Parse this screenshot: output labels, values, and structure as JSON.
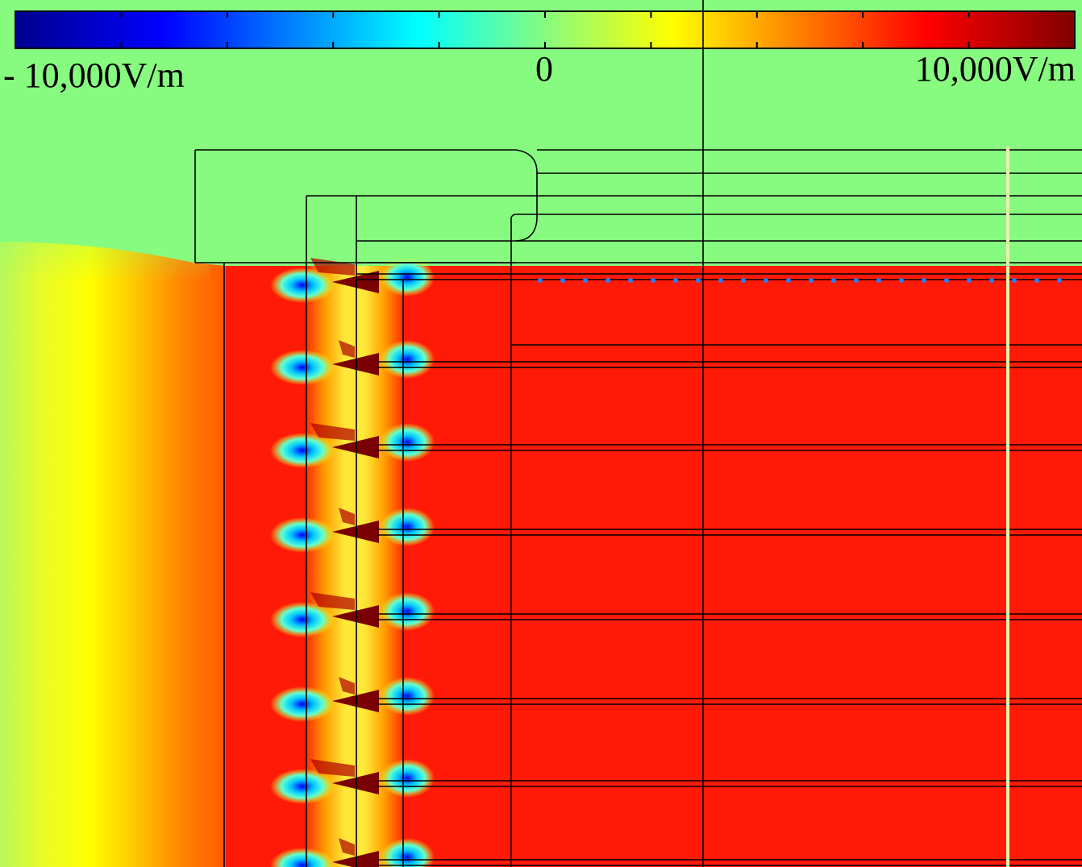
{
  "colorbar": {
    "min_label": "- 10,000V/m",
    "zero_label": "0",
    "max_label": "10,000V/m",
    "min_value": -10000,
    "max_value": 10000,
    "unit": "V/m",
    "colormap": "jet",
    "stops": [
      "#00008f",
      "#0000ff",
      "#00ffff",
      "#87fb7f",
      "#ffff00",
      "#ff0000",
      "#800000"
    ]
  },
  "colors": {
    "background_field": "#87fb7f",
    "high_field": "#ff1a08",
    "outline": "#000000"
  }
}
